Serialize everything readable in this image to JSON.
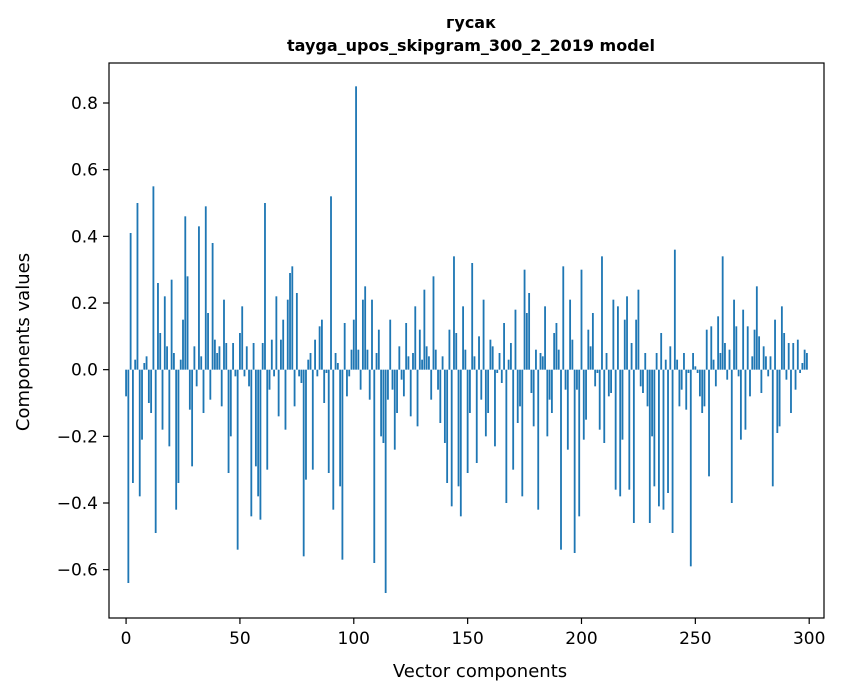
{
  "chart_data": {
    "type": "bar",
    "title": "гусак",
    "subtitle": "tayga_upos_skipgram_300_2_2019 model",
    "xlabel": "Vector components",
    "ylabel": "Components values",
    "xlim": [
      -7.5,
      306.5
    ],
    "ylim": [
      -0.745,
      0.92
    ],
    "xticks": [
      0,
      50,
      100,
      150,
      200,
      250,
      300
    ],
    "xtick_labels": [
      "0",
      "50",
      "100",
      "150",
      "200",
      "250",
      "300"
    ],
    "yticks": [
      -0.6,
      -0.4,
      -0.2,
      0.0,
      0.2,
      0.4,
      0.6,
      0.8
    ],
    "ytick_labels": [
      "−0.6",
      "−0.4",
      "−0.2",
      "0.0",
      "0.2",
      "0.4",
      "0.6",
      "0.8"
    ],
    "bar_color": "#1f77b4",
    "grid": false,
    "legend": "none",
    "values": [
      -0.08,
      -0.64,
      0.41,
      -0.34,
      0.03,
      0.5,
      -0.38,
      -0.21,
      0.02,
      0.04,
      -0.1,
      -0.13,
      0.55,
      -0.49,
      0.26,
      0.11,
      -0.18,
      0.22,
      0.07,
      -0.23,
      0.27,
      0.05,
      -0.42,
      -0.34,
      0.03,
      0.15,
      0.46,
      0.28,
      -0.12,
      -0.29,
      0.07,
      -0.05,
      0.43,
      0.04,
      -0.13,
      0.49,
      0.17,
      -0.09,
      0.38,
      0.09,
      0.05,
      0.07,
      -0.11,
      0.21,
      0.08,
      -0.31,
      -0.2,
      0.08,
      -0.02,
      -0.54,
      0.11,
      0.19,
      -0.02,
      0.07,
      -0.05,
      -0.44,
      0.08,
      -0.29,
      -0.38,
      -0.45,
      0.08,
      0.5,
      -0.3,
      -0.06,
      0.09,
      -0.02,
      0.22,
      -0.14,
      0.09,
      0.15,
      -0.18,
      0.21,
      0.29,
      0.31,
      -0.11,
      0.23,
      -0.02,
      -0.04,
      -0.56,
      -0.33,
      0.03,
      0.05,
      -0.3,
      0.09,
      -0.02,
      0.13,
      0.15,
      -0.1,
      -0.01,
      -0.31,
      0.52,
      -0.42,
      0.05,
      0.02,
      -0.35,
      -0.57,
      0.14,
      -0.08,
      -0.02,
      0.06,
      0.15,
      0.85,
      0.06,
      -0.06,
      0.21,
      0.25,
      0.06,
      -0.09,
      0.21,
      -0.58,
      0.05,
      0.12,
      -0.2,
      -0.22,
      -0.67,
      -0.09,
      0.15,
      -0.06,
      -0.24,
      -0.13,
      0.07,
      -0.03,
      -0.08,
      0.14,
      0.04,
      -0.14,
      0.05,
      0.19,
      -0.17,
      0.12,
      0.03,
      0.24,
      0.07,
      0.04,
      -0.09,
      0.28,
      0.06,
      -0.06,
      -0.16,
      0.04,
      -0.22,
      -0.34,
      0.12,
      -0.41,
      0.34,
      0.11,
      -0.35,
      -0.44,
      0.19,
      0.06,
      -0.31,
      -0.13,
      0.32,
      0.04,
      -0.28,
      0.1,
      -0.09,
      0.21,
      -0.2,
      -0.13,
      0.09,
      0.07,
      -0.23,
      -0.01,
      0.05,
      -0.04,
      0.14,
      -0.4,
      0.03,
      0.08,
      -0.3,
      0.18,
      -0.16,
      -0.11,
      -0.38,
      0.3,
      0.17,
      0.23,
      -0.07,
      -0.17,
      0.06,
      -0.42,
      0.05,
      0.04,
      0.19,
      -0.2,
      -0.09,
      -0.13,
      0.11,
      0.14,
      0.06,
      -0.54,
      0.31,
      -0.06,
      -0.24,
      0.21,
      0.09,
      -0.55,
      -0.06,
      -0.44,
      0.3,
      -0.21,
      -0.15,
      0.12,
      0.07,
      0.17,
      -0.05,
      -0.01,
      -0.18,
      0.34,
      -0.22,
      0.05,
      -0.08,
      -0.07,
      0.21,
      -0.36,
      0.19,
      -0.38,
      -0.21,
      0.15,
      0.22,
      -0.36,
      0.08,
      -0.46,
      0.15,
      0.24,
      -0.05,
      -0.07,
      0.05,
      -0.11,
      -0.46,
      -0.2,
      -0.35,
      0.05,
      -0.41,
      0.11,
      -0.42,
      0.03,
      -0.37,
      0.07,
      -0.49,
      0.36,
      0.03,
      -0.11,
      -0.06,
      0.05,
      -0.12,
      -0.01,
      -0.59,
      0.05,
      0.01,
      -0.01,
      -0.08,
      -0.13,
      -0.11,
      0.12,
      -0.32,
      0.13,
      0.03,
      -0.05,
      0.16,
      0.05,
      0.34,
      0.08,
      -0.03,
      0.06,
      -0.4,
      0.21,
      0.13,
      -0.02,
      -0.21,
      0.18,
      -0.18,
      0.13,
      -0.08,
      0.04,
      0.12,
      0.25,
      0.1,
      -0.07,
      0.07,
      0.04,
      -0.02,
      0.04,
      -0.35,
      0.15,
      -0.19,
      -0.17,
      0.19,
      0.11,
      -0.03,
      0.08,
      -0.13,
      0.08,
      -0.06,
      0.09,
      -0.01,
      0.02,
      0.06,
      0.05
    ]
  }
}
